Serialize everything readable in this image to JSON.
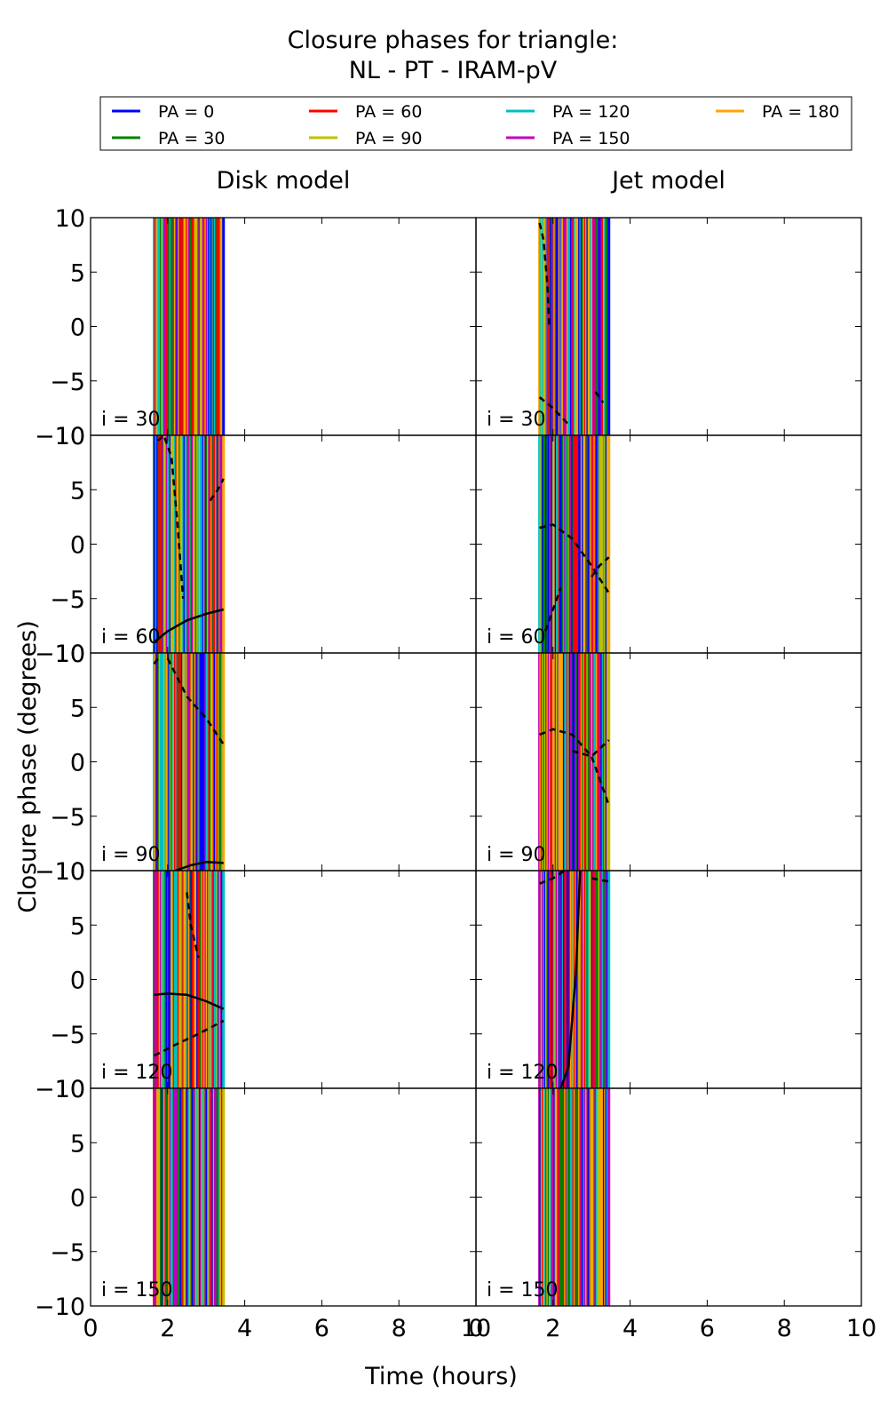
{
  "chart_data": {
    "type": "line",
    "title": "Closure phases for triangle:\nNL - PT - IRAM-pV",
    "xlabel": "Time (hours)",
    "ylabel": "Closure phase (degrees)",
    "xlim": [
      0,
      10
    ],
    "ylim": [
      -10,
      10
    ],
    "x_ticks": [
      0,
      2,
      4,
      6,
      8,
      10
    ],
    "y_ticks": [
      -10,
      -5,
      0,
      5,
      10
    ],
    "grid": false,
    "legend_placement": "top (above panels)",
    "column_titles": [
      "Disk model",
      "Jet model"
    ],
    "row_labels": [
      "i = 30",
      "i = 60",
      "i = 90",
      "i = 120",
      "i = 150"
    ],
    "series": [
      {
        "name": "PA = 0",
        "color": "#0000ff"
      },
      {
        "name": "PA = 30",
        "color": "#008000"
      },
      {
        "name": "PA = 60",
        "color": "#ff0000"
      },
      {
        "name": "PA = 90",
        "color": "#bfbf00"
      },
      {
        "name": "PA = 120",
        "color": "#00bfbf"
      },
      {
        "name": "PA = 150",
        "color": "#bf00bf"
      },
      {
        "name": "PA = 180",
        "color": "#ffa500"
      }
    ],
    "time_range": [
      1.65,
      3.45
    ],
    "panels": [
      {
        "column": "Disk model",
        "row": "i = 30",
        "black_segments": []
      },
      {
        "column": "Disk model",
        "row": "i = 60",
        "black_segments": [
          {
            "style": "solid",
            "x": [
              1.65,
              2.0,
              2.5,
              3.0,
              3.45
            ],
            "y": [
              -9.0,
              -8.0,
              -7.0,
              -6.4,
              -6.0
            ]
          },
          {
            "style": "dashed",
            "x": [
              1.75,
              1.9,
              2.1,
              2.25,
              2.4
            ],
            "y": [
              9.5,
              10.0,
              8.0,
              2.0,
              -5.0
            ]
          },
          {
            "style": "dashed",
            "x": [
              3.1,
              3.3,
              3.45
            ],
            "y": [
              4.0,
              5.0,
              6.0
            ]
          }
        ]
      },
      {
        "column": "Disk model",
        "row": "i = 90",
        "black_segments": [
          {
            "style": "solid",
            "x": [
              2.2,
              2.6,
              3.0,
              3.45
            ],
            "y": [
              -10.0,
              -9.5,
              -9.2,
              -9.3
            ]
          },
          {
            "style": "dashed",
            "x": [
              2.0,
              2.5,
              3.0,
              3.45
            ],
            "y": [
              9.5,
              6.0,
              4.0,
              1.6
            ]
          },
          {
            "style": "dashed",
            "x": [
              1.65,
              1.75
            ],
            "y": [
              9.0,
              9.5
            ]
          }
        ]
      },
      {
        "column": "Disk model",
        "row": "i = 120",
        "black_segments": [
          {
            "style": "solid",
            "x": [
              1.65,
              2.0,
              2.5,
              3.0,
              3.45
            ],
            "y": [
              -1.4,
              -1.3,
              -1.4,
              -2.0,
              -2.7
            ]
          },
          {
            "style": "dashed",
            "x": [
              1.65,
              2.2,
              2.8,
              3.45
            ],
            "y": [
              -7.0,
              -6.0,
              -5.0,
              -3.8
            ]
          },
          {
            "style": "dashed",
            "x": [
              2.5,
              2.6,
              2.8
            ],
            "y": [
              8.0,
              5.0,
              2.0
            ]
          }
        ]
      },
      {
        "column": "Disk model",
        "row": "i = 150",
        "black_segments": []
      },
      {
        "column": "Jet model",
        "row": "i = 30",
        "black_segments": [
          {
            "style": "dashed",
            "x": [
              1.65,
              1.75,
              1.85,
              1.9
            ],
            "y": [
              9.5,
              8.0,
              4.0,
              0.0
            ]
          },
          {
            "style": "dashed",
            "x": [
              1.65,
              2.0,
              2.4
            ],
            "y": [
              -6.5,
              -7.5,
              -9.0
            ]
          },
          {
            "style": "dashed",
            "x": [
              3.1,
              3.3
            ],
            "y": [
              -6.0,
              -7.0
            ]
          }
        ]
      },
      {
        "column": "Jet model",
        "row": "i = 60",
        "black_segments": [
          {
            "style": "dashed",
            "x": [
              1.65,
              2.0,
              2.5,
              3.0,
              3.45
            ],
            "y": [
              1.5,
              1.8,
              0.5,
              -2.0,
              -4.5
            ]
          },
          {
            "style": "dashed",
            "x": [
              1.8,
              2.0,
              2.2
            ],
            "y": [
              -8.0,
              -6.0,
              -4.0
            ]
          },
          {
            "style": "dashed",
            "x": [
              3.0,
              3.2,
              3.45
            ],
            "y": [
              -3.0,
              -2.0,
              -1.2
            ]
          }
        ]
      },
      {
        "column": "Jet model",
        "row": "i = 90",
        "black_segments": [
          {
            "style": "dashed",
            "x": [
              1.65,
              2.0,
              2.5,
              3.0,
              3.45
            ],
            "y": [
              2.5,
              3.0,
              2.5,
              0.5,
              -4.0
            ]
          },
          {
            "style": "dashed",
            "x": [
              2.5,
              3.0,
              3.45
            ],
            "y": [
              1.0,
              0.5,
              2.0
            ]
          }
        ]
      },
      {
        "column": "Jet model",
        "row": "i = 120",
        "black_segments": [
          {
            "style": "solid",
            "x": [
              2.2,
              2.4,
              2.6,
              2.7
            ],
            "y": [
              -10.0,
              -8.0,
              1.0,
              10.0
            ]
          },
          {
            "style": "dashed",
            "x": [
              1.65,
              2.0,
              2.3
            ],
            "y": [
              8.8,
              9.3,
              10.0
            ]
          },
          {
            "style": "dashed",
            "x": [
              3.0,
              3.45
            ],
            "y": [
              9.3,
              9.0
            ]
          }
        ]
      },
      {
        "column": "Jet model",
        "row": "i = 150",
        "black_segments": []
      }
    ]
  }
}
